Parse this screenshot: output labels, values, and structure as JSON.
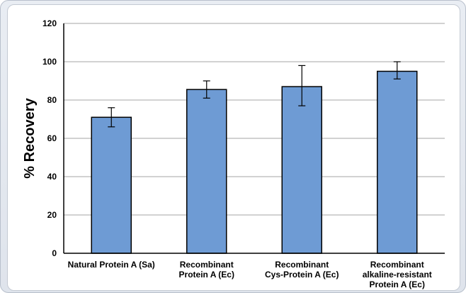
{
  "chart_data": {
    "type": "bar",
    "title": "",
    "xlabel": "",
    "ylabel": "% Recovery",
    "ylim": [
      0,
      120
    ],
    "yticks": [
      0,
      20,
      40,
      60,
      80,
      100,
      120
    ],
    "grid": true,
    "categories": [
      [
        "Natural Protein A (Sa)"
      ],
      [
        "Recombinant",
        "Protein A (Ec)"
      ],
      [
        "Recombinant",
        "Cys-Protein A (Ec)"
      ],
      [
        "Recombinant",
        "alkaline-resistant",
        "Protein A (Ec)"
      ]
    ],
    "values": [
      71,
      85.5,
      87,
      95
    ],
    "error_bars": [
      {
        "low": 66,
        "high": 76
      },
      {
        "low": 81,
        "high": 90
      },
      {
        "low": 77,
        "high": 98
      },
      {
        "low": 91,
        "high": 100
      }
    ],
    "colors": {
      "bar": "#6e9bd4",
      "bar_edge": "#000000",
      "grid": "#a6a6a6",
      "error_bar": "#000000"
    }
  }
}
